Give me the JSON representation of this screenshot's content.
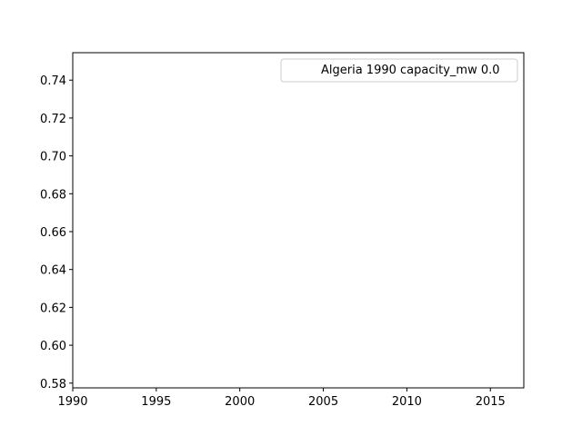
{
  "chart_data": {
    "type": "line",
    "title": "",
    "xlabel": "",
    "ylabel": "",
    "xlim": [
      1990,
      2017
    ],
    "ylim": [
      0.5775,
      0.7545
    ],
    "x_ticks": [
      1990,
      1995,
      2000,
      2005,
      2010,
      2015
    ],
    "x_tick_labels": [
      "1990",
      "1995",
      "2000",
      "2005",
      "2010",
      "2015"
    ],
    "y_ticks": [
      0.58,
      0.6,
      0.62,
      0.64,
      0.66,
      0.68,
      0.7,
      0.72,
      0.74
    ],
    "y_tick_labels": [
      "0.58",
      "0.60",
      "0.62",
      "0.64",
      "0.66",
      "0.68",
      "0.70",
      "0.72",
      "0.74"
    ],
    "grid": false,
    "legend": {
      "placement": "top-right",
      "entries": [
        "Algeria 1990 capacity_mw 0.0"
      ]
    },
    "series": [
      {
        "name": "Algeria 1990 capacity_mw 0.0",
        "color": "#ffffff",
        "x": [],
        "y": []
      }
    ]
  }
}
